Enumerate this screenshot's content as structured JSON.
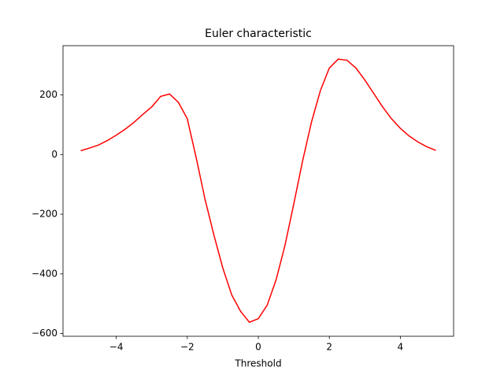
{
  "chart_data": {
    "type": "line",
    "title": "Euler characteristic",
    "x_label": "Threshold",
    "x": [
      -5,
      -4.75,
      -4.5,
      -4.25,
      -4,
      -3.75,
      -3.5,
      -3.25,
      -3,
      -2.75,
      -2.5,
      -2.25,
      -2,
      -1.75,
      -1.5,
      -1.25,
      -1,
      -0.75,
      -0.5,
      -0.25,
      0,
      0.25,
      0.5,
      0.75,
      1,
      1.25,
      1.5,
      1.75,
      2,
      2.25,
      2.5,
      2.75,
      3,
      3.25,
      3.5,
      3.75,
      4,
      4.25,
      4.5,
      4.75,
      5
    ],
    "series": [
      {
        "color": "#ff0000",
        "values": [
          13,
          22,
          32,
          47,
          65,
          85,
          108,
          135,
          160,
          195,
          203,
          175,
          120,
          -10,
          -150,
          -270,
          -380,
          -470,
          -525,
          -562,
          -550,
          -505,
          -420,
          -305,
          -165,
          -20,
          110,
          215,
          290,
          320,
          316,
          290,
          250,
          205,
          160,
          120,
          88,
          62,
          42,
          26,
          14
        ]
      }
    ],
    "xlim": [
      -5.5,
      5.5
    ],
    "ylim": [
      -609,
      365
    ],
    "xticks": [
      {
        "value": -4,
        "label": "−4"
      },
      {
        "value": -2,
        "label": "−2"
      },
      0,
      2,
      4
    ],
    "yticks": [
      {
        "value": -600,
        "label": "−600"
      },
      {
        "value": -400,
        "label": "−400"
      },
      {
        "value": -200,
        "label": "−200"
      },
      0,
      200
    ]
  }
}
